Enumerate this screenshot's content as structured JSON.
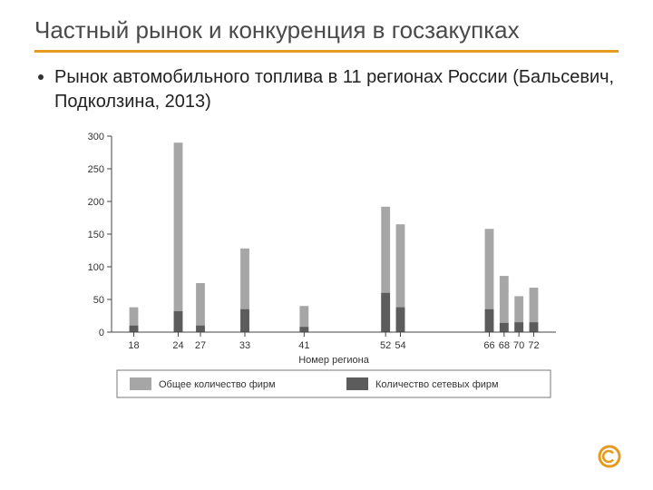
{
  "title": "Частный рынок и конкуренция в госзакупках",
  "bullet": "Рынок автомобильного топлива в 11 регионах России (Бальсевич, Подколзина, 2013)",
  "chart": {
    "type": "bar",
    "xlabel": "Номер региона",
    "ylim": [
      0,
      300
    ],
    "ytick_step": 50,
    "yticks": [
      0,
      50,
      100,
      150,
      200,
      250,
      300
    ],
    "categories": [
      "18",
      "24",
      "27",
      "33",
      "41",
      "52",
      "54",
      "66",
      "68",
      "70",
      "72"
    ],
    "x_positions": [
      18,
      24,
      27,
      33,
      41,
      52,
      54,
      66,
      68,
      70,
      72
    ],
    "x_domain": [
      15,
      75
    ],
    "series_total": {
      "label": "Общее количество фирм",
      "color": "#a6a6a6",
      "values": [
        38,
        290,
        75,
        128,
        40,
        192,
        165,
        158,
        86,
        55,
        68
      ]
    },
    "series_network": {
      "label": "Количество сетевых фирм",
      "color": "#5c5c5c",
      "values": [
        10,
        32,
        10,
        35,
        8,
        60,
        38,
        35,
        14,
        15,
        15
      ]
    },
    "bar_width": 1.2,
    "background_color": "#ffffff",
    "plot_border_color": "#444444",
    "tick_color": "#444444",
    "label_fontsize": 11,
    "tick_fontsize": 11,
    "legend_fontsize": 11,
    "legend_border_color": "#7a7a7a",
    "legend_box_size": 24
  },
  "logo_colors": {
    "outer": "#e59b22",
    "gap": "#ffffff"
  }
}
